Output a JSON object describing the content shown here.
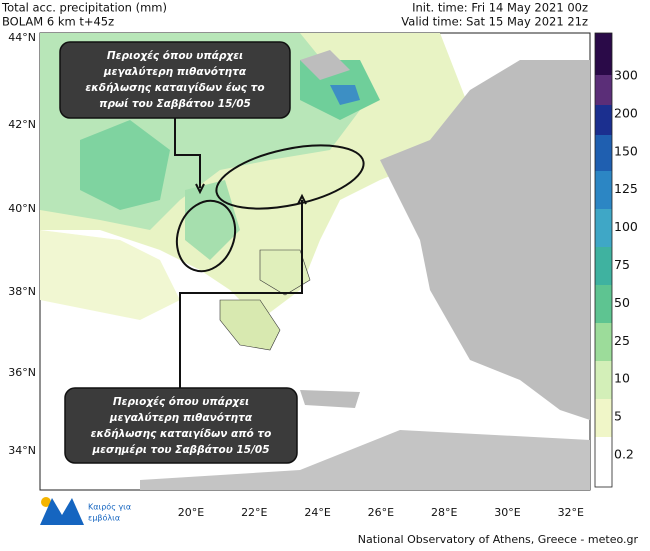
{
  "header": {
    "left": [
      "Total acc. precipitation (mm)",
      "BOLAM 6 km t+45z"
    ],
    "right": [
      "Init. time: Fri 14 May 2021 00z",
      "Valid time: Sat 15 May 2021 21z"
    ]
  },
  "latitude_labels": [
    "44°N",
    "42°N",
    "40°N",
    "38°N",
    "36°N",
    "34°N"
  ],
  "longitude_labels": [
    "20°E",
    "22°E",
    "24°E",
    "26°E",
    "28°E",
    "30°E",
    "32°E"
  ],
  "colorbar": {
    "labels": [
      300,
      200,
      150,
      125,
      100,
      75,
      50,
      25,
      10,
      5,
      0.2
    ]
  },
  "annotations": [
    {
      "lines": [
        "Περιοχές όπου υπάρχει",
        "μεγαλύτερη πιθανότητα",
        "εκδήλωσης καταιγίδων  έως το",
        "πρωί του Σαββάτου 15/05"
      ]
    },
    {
      "lines": [
        "Περιοχές όπου υπάρχει",
        "μεγαλύτερη πιθανότητα",
        "εκδήλωσης καταιγίδων από το",
        "μεσημέρι του Σαββάτου 15/05"
      ]
    }
  ],
  "logo": {
    "lines": [
      "Καιρός για",
      "εμβόλια"
    ]
  },
  "footer": "National Observatory of Athens, Greece - meteo.gr"
}
